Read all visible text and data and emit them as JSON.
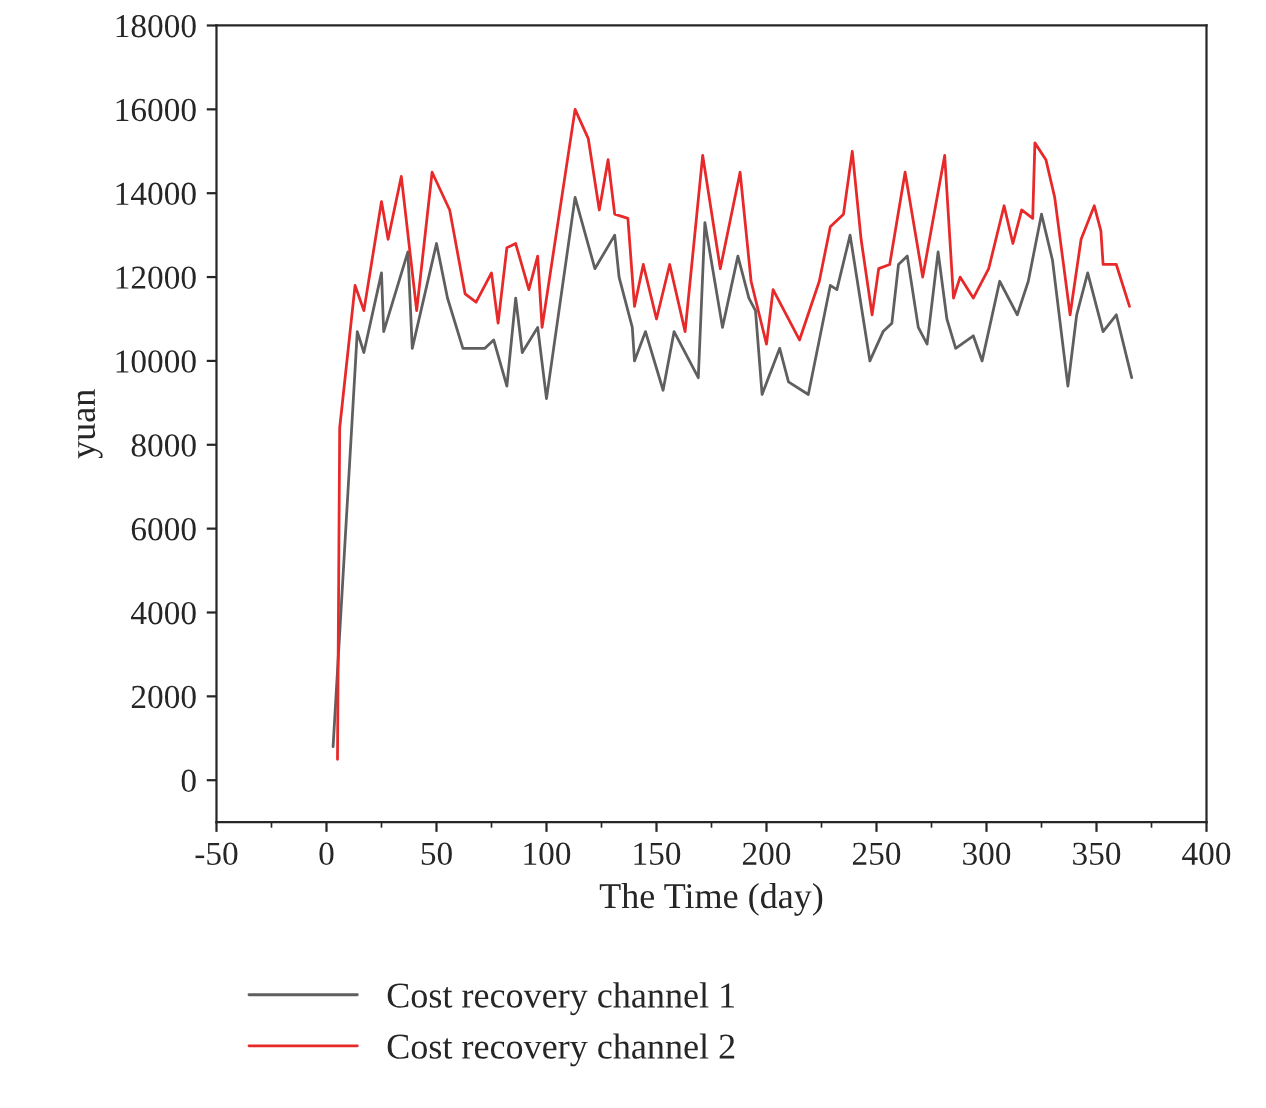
{
  "chart_data": {
    "type": "line",
    "xlabel": "The Time (day)",
    "ylabel": "yuan",
    "xlim": [
      -50,
      400
    ],
    "xticks": [
      -50,
      0,
      50,
      100,
      150,
      200,
      250,
      300,
      350,
      400
    ],
    "ylim": [
      -1000,
      18000
    ],
    "yticks": [
      0,
      2000,
      4000,
      6000,
      8000,
      10000,
      12000,
      14000,
      16000,
      18000
    ],
    "legend": "bottom",
    "grid": false,
    "series": [
      {
        "name": "Cost recovery channel 1",
        "color": "#5f5f5f",
        "x": [
          3,
          14,
          17,
          25,
          26,
          37,
          39,
          50,
          55,
          62,
          72,
          76,
          82,
          86,
          89,
          96,
          100,
          113,
          122,
          131,
          133,
          139,
          140,
          145,
          153,
          158,
          169,
          172,
          180,
          187,
          192,
          195,
          198,
          206,
          210,
          219,
          229,
          232,
          238,
          247,
          253,
          257,
          260,
          264,
          269,
          273,
          278,
          282,
          286,
          294,
          298,
          306,
          314,
          319,
          325,
          330,
          337,
          341,
          346,
          353,
          359,
          366
        ],
        "values": [
          800,
          10700,
          10200,
          12100,
          10700,
          12600,
          10300,
          12800,
          11500,
          10300,
          10300,
          10500,
          9400,
          11500,
          10200,
          10800,
          9100,
          13900,
          12200,
          13000,
          12000,
          10800,
          10000,
          10700,
          9300,
          10700,
          9600,
          13300,
          10800,
          12500,
          11500,
          11200,
          9200,
          10300,
          9500,
          9200,
          11800,
          11700,
          13000,
          10000,
          10700,
          10900,
          12300,
          12500,
          10800,
          10400,
          12600,
          11000,
          10300,
          10600,
          10000,
          11900,
          11100,
          11900,
          13500,
          12400,
          9400,
          11100,
          12100,
          10700,
          11100,
          9600
        ]
      },
      {
        "name": "Cost recovery channel 2",
        "color": "#e8292a",
        "x": [
          5,
          6,
          13,
          17,
          25,
          28,
          34,
          41,
          48,
          56,
          63,
          68,
          75,
          78,
          82,
          86,
          92,
          96,
          98,
          113,
          119,
          124,
          128,
          131,
          137,
          140,
          144,
          150,
          156,
          163,
          171,
          179,
          188,
          193,
          200,
          203,
          215,
          224,
          229,
          235,
          239,
          243,
          248,
          251,
          256,
          263,
          271,
          281,
          285,
          288,
          294,
          301,
          308,
          312,
          316,
          321,
          322,
          327,
          331,
          338,
          343,
          349,
          352,
          353,
          359,
          365
        ],
        "values": [
          500,
          8400,
          11800,
          11200,
          13800,
          12900,
          14400,
          11200,
          14500,
          13600,
          11600,
          11400,
          12100,
          10900,
          12700,
          12800,
          11700,
          12500,
          10800,
          16000,
          15300,
          13600,
          14800,
          13500,
          13400,
          11300,
          12300,
          11000,
          12300,
          10700,
          14900,
          12200,
          14500,
          11900,
          10400,
          11700,
          10500,
          11900,
          13200,
          13500,
          15000,
          12900,
          11100,
          12200,
          12300,
          14500,
          12000,
          14900,
          11500,
          12000,
          11500,
          12200,
          13700,
          12800,
          13600,
          13400,
          15200,
          14800,
          13900,
          11100,
          12900,
          13700,
          13100,
          12300,
          12300,
          11300
        ]
      }
    ]
  }
}
